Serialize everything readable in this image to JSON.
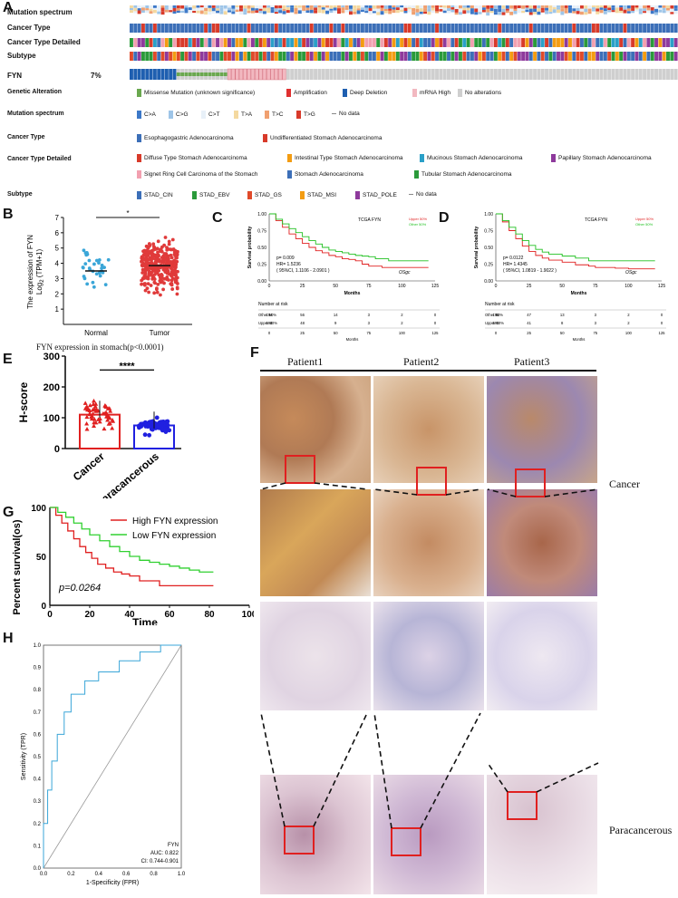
{
  "panels": {
    "A": "A",
    "B": "B",
    "C": "C",
    "D": "D",
    "E": "E",
    "F": "F",
    "G": "G",
    "H": "H"
  },
  "panelA": {
    "rows": [
      "Mutation spectrum",
      "Cancer Type",
      "Cancer Type Detailed",
      "Subtype",
      "FYN"
    ],
    "fyn_pct": "7%",
    "legend_sections": [
      {
        "title": "Genetic Alteration",
        "items": [
          {
            "label": "Missense Mutation (unknown significance)",
            "color": "#6aa84f"
          },
          {
            "label": "Amplification",
            "color": "#e03030"
          },
          {
            "label": "Deep Deletion",
            "color": "#1f5fb0"
          },
          {
            "label": "mRNA High",
            "color": "#f2b8c0"
          },
          {
            "label": "No alterations",
            "color": "#cfcfcf"
          }
        ]
      },
      {
        "title": "Mutation spectrum",
        "items": [
          {
            "label": "C>A",
            "color": "#3c78c8"
          },
          {
            "label": "C>G",
            "color": "#9ec5e8"
          },
          {
            "label": "C>T",
            "color": "#e8f0f8"
          },
          {
            "label": "T>A",
            "color": "#f4d9a0"
          },
          {
            "label": "T>C",
            "color": "#f0a070"
          },
          {
            "label": "T>G",
            "color": "#d83a2a"
          },
          {
            "label": "No data",
            "color": "#ffffff"
          }
        ]
      },
      {
        "title": "Cancer Type",
        "items": [
          {
            "label": "Esophagogastric Adenocarcinoma",
            "color": "#3c6fb8"
          },
          {
            "label": "Undifferentiated Stomach Adenocarcinoma",
            "color": "#d83a2a"
          }
        ]
      },
      {
        "title": "Cancer Type Detailed",
        "items": [
          {
            "label": "Diffuse Type Stomach Adenocarcinoma",
            "color": "#d83a2a"
          },
          {
            "label": "Intestinal Type Stomach Adenocarcinoma",
            "color": "#f39c12"
          },
          {
            "label": "Mucinous Stomach Adenocarcinoma",
            "color": "#2aa0c8"
          },
          {
            "label": "Papillary Stomach Adenocarcinoma",
            "color": "#8e3a9c"
          },
          {
            "label": "Signet Ring Cell Carcinoma of the Stomach",
            "color": "#f2a0b0"
          },
          {
            "label": "Stomach Adenocarcinoma",
            "color": "#3c6fb8"
          },
          {
            "label": "Tubular Stomach Adenocarcinoma",
            "color": "#2a9a3a"
          }
        ]
      },
      {
        "title": "Subtype",
        "items": [
          {
            "label": "STAD_CIN",
            "color": "#3c6fb8"
          },
          {
            "label": "STAD_EBV",
            "color": "#2a9a3a"
          },
          {
            "label": "STAD_GS",
            "color": "#e04a2a"
          },
          {
            "label": "STAD_MSI",
            "color": "#f39c12"
          },
          {
            "label": "STAD_POLE",
            "color": "#8e3a9c"
          },
          {
            "label": "No data",
            "color": "#ffffff"
          }
        ]
      }
    ]
  },
  "panelB": {
    "ylabel_line1": "The expression of FYN",
    "ylabel_line2": "Log",
    "ylabel_sub": "2",
    "ylabel_line3": " (TPM+1)",
    "sig": "*",
    "caption": "FYN expression in stomach(p<0.0001)"
  },
  "panelC": {
    "title": "TCGA FYN",
    "upper": "Upper 50%",
    "other": "Other 50%",
    "ylabel": "Survival probability",
    "xlabel": "Months",
    "p": "p= 0.009",
    "hr": "HR= 1.5236",
    "ci": "( 95%CI, 1.1106 - 2.0901 )",
    "tag": "OSgc",
    "risk_title": "Number at risk",
    "risk_rows": [
      {
        "name": "Other 50%",
        "vals": [
          "194",
          "56",
          "14",
          "3",
          "2",
          "0"
        ]
      },
      {
        "name": "Upper 50%",
        "vals": [
          "194",
          "48",
          "9",
          "3",
          "2",
          "0"
        ]
      }
    ]
  },
  "panelD": {
    "title": "TCGA FYN",
    "upper": "Upper 50%",
    "other": "Other 50%",
    "ylabel": "Survival probability",
    "xlabel": "Months",
    "p": "p= 0.0122",
    "hr": "HR= 1.4345",
    "ci": "( 95%CI, 1.0819 - 1.9022 )",
    "tag": "OSgc",
    "risk_title": "Number at risk",
    "risk_rows": [
      {
        "name": "Other 50%",
        "vals": [
          "195",
          "47",
          "13",
          "3",
          "2",
          "0"
        ]
      },
      {
        "name": "Upper 50%",
        "vals": [
          "190",
          "41",
          "8",
          "3",
          "2",
          "0"
        ]
      }
    ]
  },
  "panelE": {
    "ylabel": "H-score",
    "sig": "****"
  },
  "panelF": {
    "patients": [
      "Patient1",
      "Patient2",
      "Patient3"
    ],
    "row_labels": [
      "Cancer",
      "Paracancerous"
    ]
  },
  "panelG": {
    "ylabel": "Percent survival(os)",
    "xlabel": "Time",
    "legend_high": "High FYN expression",
    "legend_low": "Low FYN expression",
    "p": "p=0.0264"
  },
  "panelH": {
    "ylabel": "Sensitivity (TPR)",
    "xlabel": "1-Specificity (FPR)",
    "gene": "FYN",
    "auc": "AUC: 0.822",
    "ci": "CI: 0.744-0.901"
  },
  "chart_data": [
    {
      "type": "scatter",
      "title": "FYN expression in stomach(p<0.0001)",
      "categories": [
        "Normal",
        "Tumor"
      ],
      "series": [
        {
          "name": "Normal",
          "mean": 3.5,
          "n": 32,
          "color": "#3aa6d8"
        },
        {
          "name": "Tumor",
          "mean": 3.85,
          "n": 375,
          "color": "#e03a3a"
        }
      ],
      "ylabel": "The expression of FYN Log2 (TPM+1)",
      "ylim": [
        0,
        7
      ],
      "yticks": [
        1,
        2,
        3,
        4,
        5,
        6,
        7
      ]
    },
    {
      "type": "line",
      "title": "TCGA FYN (C)",
      "xlabel": "Months",
      "ylabel": "Survival probability",
      "xlim": [
        0,
        125
      ],
      "ylim": [
        0,
        1
      ],
      "xticks": [
        0,
        25,
        50,
        75,
        100,
        125
      ],
      "yticks": [
        0,
        0.25,
        0.5,
        0.75,
        1.0
      ],
      "series": [
        {
          "name": "Upper 50%",
          "color": "#e02020",
          "x": [
            0,
            5,
            10,
            15,
            20,
            25,
            30,
            35,
            40,
            45,
            50,
            55,
            60,
            65,
            70,
            75,
            80,
            85,
            90,
            100,
            110,
            120
          ],
          "y": [
            1,
            0.9,
            0.8,
            0.7,
            0.63,
            0.56,
            0.5,
            0.45,
            0.42,
            0.38,
            0.36,
            0.33,
            0.32,
            0.3,
            0.25,
            0.22,
            0.22,
            0.2,
            0.2,
            0.2,
            0.2,
            0.2
          ]
        },
        {
          "name": "Other 50%",
          "color": "#20c020",
          "x": [
            0,
            5,
            10,
            15,
            20,
            25,
            30,
            35,
            40,
            45,
            50,
            55,
            60,
            65,
            70,
            75,
            80,
            90,
            100,
            110,
            120
          ],
          "y": [
            1,
            0.92,
            0.85,
            0.78,
            0.72,
            0.66,
            0.6,
            0.55,
            0.5,
            0.46,
            0.44,
            0.42,
            0.4,
            0.38,
            0.37,
            0.36,
            0.33,
            0.3,
            0.3,
            0.3,
            0.3
          ]
        }
      ]
    },
    {
      "type": "line",
      "title": "TCGA FYN (D)",
      "xlabel": "Months",
      "ylabel": "Survival probability",
      "xlim": [
        0,
        125
      ],
      "ylim": [
        0,
        1
      ],
      "xticks": [
        0,
        25,
        50,
        75,
        100,
        125
      ],
      "yticks": [
        0,
        0.25,
        0.5,
        0.75,
        1.0
      ],
      "series": [
        {
          "name": "Upper 50%",
          "color": "#e02020",
          "x": [
            0,
            5,
            10,
            15,
            20,
            25,
            30,
            35,
            40,
            50,
            60,
            70,
            75,
            80,
            90,
            100,
            110,
            120
          ],
          "y": [
            1,
            0.88,
            0.75,
            0.63,
            0.52,
            0.44,
            0.38,
            0.34,
            0.31,
            0.28,
            0.24,
            0.22,
            0.2,
            0.2,
            0.19,
            0.18,
            0.18,
            0.18
          ]
        },
        {
          "name": "Other 50%",
          "color": "#20c020",
          "x": [
            0,
            5,
            10,
            15,
            20,
            25,
            30,
            35,
            40,
            50,
            60,
            70,
            80,
            90,
            100,
            110,
            120
          ],
          "y": [
            1,
            0.9,
            0.8,
            0.7,
            0.6,
            0.53,
            0.47,
            0.43,
            0.4,
            0.37,
            0.34,
            0.3,
            0.3,
            0.3,
            0.3,
            0.3,
            0.3
          ]
        }
      ]
    },
    {
      "type": "bar",
      "title": "H-score",
      "categories": [
        "Cancer",
        "Paracancerous"
      ],
      "values": [
        110,
        75
      ],
      "ylim": [
        0,
        300
      ],
      "yticks": [
        0,
        100,
        200,
        300
      ],
      "ylabel": "H-score",
      "colors": [
        "#e02020",
        "#2020e0"
      ]
    },
    {
      "type": "line",
      "title": "Percent survival(os)",
      "xlabel": "Time",
      "ylabel": "Percent survival(os)",
      "xlim": [
        0,
        100
      ],
      "ylim": [
        0,
        100
      ],
      "xticks": [
        0,
        20,
        40,
        60,
        80,
        100
      ],
      "yticks": [
        0,
        50,
        100
      ],
      "series": [
        {
          "name": "High FYN expression",
          "color": "#e02020",
          "x": [
            0,
            3,
            6,
            9,
            12,
            15,
            18,
            21,
            24,
            28,
            32,
            36,
            40,
            45,
            50,
            55,
            60,
            70,
            82
          ],
          "y": [
            100,
            92,
            84,
            76,
            68,
            60,
            54,
            48,
            42,
            38,
            34,
            32,
            30,
            25,
            25,
            20,
            20,
            20,
            20
          ]
        },
        {
          "name": "Low FYN expression",
          "color": "#30d030",
          "x": [
            0,
            4,
            8,
            12,
            16,
            20,
            25,
            30,
            35,
            40,
            45,
            50,
            55,
            60,
            65,
            70,
            75,
            82
          ],
          "y": [
            100,
            95,
            90,
            84,
            78,
            72,
            66,
            60,
            55,
            50,
            46,
            44,
            42,
            40,
            38,
            36,
            34,
            34
          ]
        }
      ]
    },
    {
      "type": "line",
      "title": "ROC FYN",
      "xlabel": "1-Specificity (FPR)",
      "ylabel": "Sensitivity (TPR)",
      "xlim": [
        0,
        1
      ],
      "ylim": [
        0,
        1
      ],
      "xticks": [
        0,
        0.2,
        0.4,
        0.6,
        0.8,
        1.0
      ],
      "yticks": [
        0,
        0.1,
        0.2,
        0.3,
        0.4,
        0.5,
        0.6,
        0.7,
        0.8,
        0.9,
        1.0
      ],
      "series": [
        {
          "name": "FYN",
          "color": "#3aa6d8",
          "x": [
            0,
            0,
            0.03,
            0.03,
            0.06,
            0.06,
            0.1,
            0.1,
            0.15,
            0.15,
            0.2,
            0.2,
            0.3,
            0.3,
            0.4,
            0.4,
            0.55,
            0.55,
            0.7,
            0.7,
            0.85,
            0.85,
            1
          ],
          "y": [
            0,
            0.2,
            0.2,
            0.35,
            0.35,
            0.48,
            0.48,
            0.6,
            0.6,
            0.7,
            0.7,
            0.78,
            0.78,
            0.84,
            0.84,
            0.88,
            0.88,
            0.93,
            0.93,
            0.97,
            0.97,
            1,
            1
          ]
        }
      ],
      "auc": 0.822
    }
  ]
}
